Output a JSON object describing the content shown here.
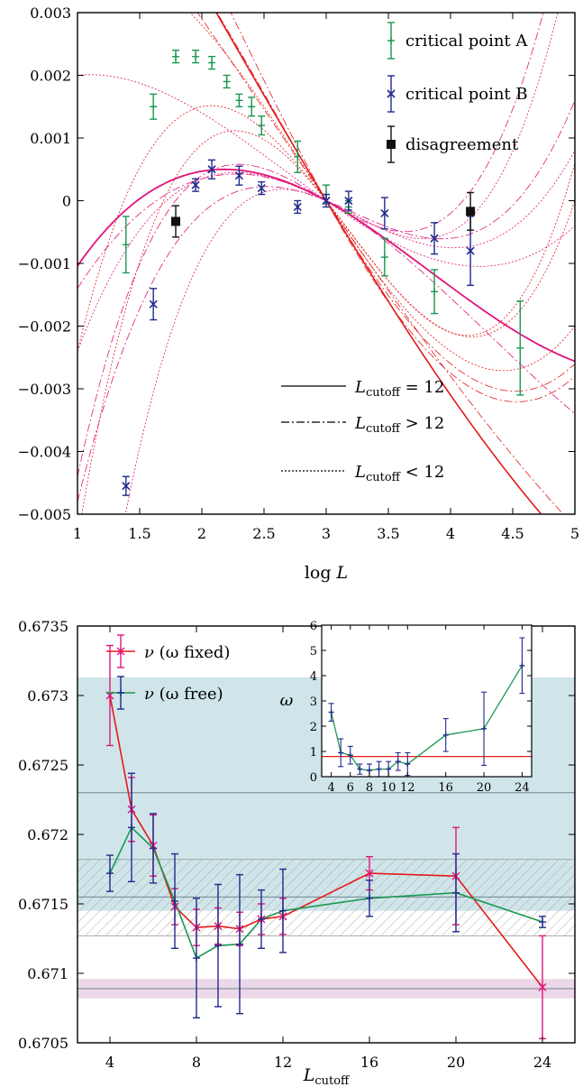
{
  "chart_data": [
    {
      "type": "scatter",
      "title": "",
      "xlabel_main": "log",
      "xlabel_var": "L",
      "ylabel": "",
      "xlim": [
        1,
        5
      ],
      "ylim": [
        -0.005,
        0.003
      ],
      "x_ticks": [
        1,
        1.5,
        2,
        2.5,
        3,
        3.5,
        4,
        4.5,
        5
      ],
      "x_tick_labels": [
        "1",
        "1.5",
        "2",
        "2.5",
        "3",
        "3.5",
        "4",
        "4.5",
        "5"
      ],
      "y_ticks": [
        0.003,
        0.002,
        0.001,
        0,
        -0.001,
        -0.002,
        -0.003,
        -0.004,
        -0.005
      ],
      "y_tick_labels": [
        "0.003",
        "0.002",
        "0.001",
        "0",
        "−0.001",
        "−0.002",
        "−0.003",
        "−0.004",
        "−0.005"
      ],
      "legend_position": "top-right",
      "series": [
        {
          "name": "critical point A",
          "color": "#1a9850",
          "marker": "plus",
          "points": [
            {
              "x": 1.39,
              "y": -0.0007,
              "err": 0.00045
            },
            {
              "x": 1.61,
              "y": 0.0015,
              "err": 0.0002
            },
            {
              "x": 1.79,
              "y": 0.0023,
              "err": 0.0001
            },
            {
              "x": 1.95,
              "y": 0.0023,
              "err": 0.0001
            },
            {
              "x": 2.08,
              "y": 0.0022,
              "err": 0.0001
            },
            {
              "x": 2.2,
              "y": 0.0019,
              "err": 0.0001
            },
            {
              "x": 2.3,
              "y": 0.0016,
              "err": 0.0001
            },
            {
              "x": 2.4,
              "y": 0.0015,
              "err": 0.00015
            },
            {
              "x": 2.48,
              "y": 0.0012,
              "err": 0.00015
            },
            {
              "x": 2.77,
              "y": 0.0007,
              "err": 0.00025
            },
            {
              "x": 3.0,
              "y": 0.0001,
              "err": 0.00015
            },
            {
              "x": 3.18,
              "y": -0.0001,
              "err": 0.0001
            },
            {
              "x": 3.47,
              "y": -0.0009,
              "err": 0.0003
            },
            {
              "x": 3.87,
              "y": -0.00145,
              "err": 0.00035
            },
            {
              "x": 4.56,
              "y": -0.00235,
              "err": 0.00075
            }
          ]
        },
        {
          "name": "critical point B",
          "color": "#1f2a8c",
          "marker": "cross",
          "points": [
            {
              "x": 1.39,
              "y": -0.00455,
              "err": 0.00015
            },
            {
              "x": 1.61,
              "y": -0.00165,
              "err": 0.00025
            },
            {
              "x": 1.95,
              "y": 0.00025,
              "err": 0.0001
            },
            {
              "x": 2.08,
              "y": 0.0005,
              "err": 0.00015
            },
            {
              "x": 2.3,
              "y": 0.0004,
              "err": 0.00015
            },
            {
              "x": 2.48,
              "y": 0.0002,
              "err": 0.0001
            },
            {
              "x": 2.77,
              "y": -0.0001,
              "err": 0.0001
            },
            {
              "x": 3.0,
              "y": 0.0,
              "err": 0.0001
            },
            {
              "x": 3.18,
              "y": 0.0,
              "err": 0.00015
            },
            {
              "x": 3.47,
              "y": -0.0002,
              "err": 0.00025
            },
            {
              "x": 3.87,
              "y": -0.0006,
              "err": 0.00025
            },
            {
              "x": 4.16,
              "y": -0.0008,
              "err": 0.00055
            }
          ]
        },
        {
          "name": "disagreement",
          "color": "#111111",
          "marker": "square",
          "points": [
            {
              "x": 1.79,
              "y": -0.00033,
              "err": 0.00025
            },
            {
              "x": 4.16,
              "y": -0.00017,
              "err": 0.0003
            }
          ]
        }
      ],
      "fits": [
        {
          "name": "L_cutoff = 12",
          "style": "solid",
          "color": "#e31a1c",
          "family": "A",
          "coeffs": [
            0.0035,
            -0.0033,
            0.00045
          ]
        },
        {
          "name": "L_cutoff = 12",
          "style": "solid",
          "color": "#e0157a",
          "family": "B",
          "coeffs": [
            -0.0065,
            0.0055,
            -0.0011
          ]
        }
      ],
      "line_legend": [
        {
          "style": "solid",
          "label_sym": "L",
          "label_sub": "cutoff",
          "label_rest": " = 12"
        },
        {
          "style": "dashdot",
          "label_sym": "L",
          "label_sub": "cutoff",
          "label_rest": " > 12"
        },
        {
          "style": "dotted",
          "label_sym": "L",
          "label_sub": "cutoff",
          "label_rest": " < 12"
        }
      ]
    },
    {
      "type": "line",
      "title": "",
      "xlabel_sym": "L",
      "xlabel_sub": "cutoff",
      "ylabel": "",
      "xlim": [
        2.5,
        25.5
      ],
      "ylim": [
        0.6705,
        0.6735
      ],
      "x_ticks": [
        4,
        8,
        12,
        16,
        20,
        24
      ],
      "x_tick_labels": [
        "4",
        "8",
        "12",
        "16",
        "20",
        "24"
      ],
      "y_ticks": [
        0.6735,
        0.673,
        0.6725,
        0.672,
        0.6715,
        0.671,
        0.6705
      ],
      "y_tick_labels": [
        "0.6735",
        "0.673",
        "0.6725",
        "0.672",
        "0.6715",
        "0.671",
        "0.6705"
      ],
      "legend_position": "top-left",
      "bands": [
        {
          "kind": "shaded",
          "color": "#cfe5ea",
          "y0": 0.67145,
          "y1": 0.67313,
          "line": 0.6723
        },
        {
          "kind": "hatched",
          "color": "#999999",
          "y0": 0.67127,
          "y1": 0.67182,
          "line": 0.67155
        },
        {
          "kind": "shaded",
          "color": "#ecd8e8",
          "y0": 0.67082,
          "y1": 0.67096,
          "line": 0.67089
        }
      ],
      "categories": [
        4,
        5,
        6,
        7,
        8,
        9,
        10,
        11,
        12,
        16,
        20,
        24
      ],
      "series": [
        {
          "name": "ν (ω fixed)",
          "label_greek": "ν",
          "label_rest": "(ω fixed)",
          "line_color": "#e31a1c",
          "err_color": "#e0157a",
          "values": [
            0.673,
            0.67218,
            0.67192,
            0.67148,
            0.67133,
            0.67134,
            0.67132,
            0.67139,
            0.67141,
            0.67172,
            0.6717,
            0.6709
          ],
          "errors": [
            0.00036,
            0.00023,
            0.00022,
            0.00013,
            0.00013,
            0.00013,
            0.00012,
            0.00011,
            0.00013,
            0.00012,
            0.00035,
            0.00037
          ]
        },
        {
          "name": "ν (ω free)",
          "label_greek": "ν",
          "label_rest": "(ω free)",
          "line_color": "#1a9850",
          "err_color": "#1f2a8c",
          "values": [
            0.67172,
            0.67205,
            0.6719,
            0.67152,
            0.67111,
            0.6712,
            0.67121,
            0.67139,
            0.67145,
            0.67154,
            0.67158,
            0.67137
          ],
          "errors": [
            0.00013,
            0.00039,
            0.00025,
            0.00034,
            0.00043,
            0.00044,
            0.0005,
            0.00021,
            0.0003,
            0.00013,
            0.00028,
            4e-05
          ]
        }
      ],
      "inset": {
        "ylabel": "ω",
        "xlim": [
          3,
          25
        ],
        "ylim": [
          0,
          6
        ],
        "x_ticks": [
          4,
          6,
          8,
          10,
          12,
          16,
          20,
          24
        ],
        "x_tick_labels": [
          "4",
          "6",
          "8",
          "10",
          "12",
          "16",
          "20",
          "24"
        ],
        "y_ticks": [
          0,
          1,
          2,
          3,
          4,
          5,
          6
        ],
        "y_tick_labels": [
          "0",
          "1",
          "2",
          "3",
          "4",
          "5",
          "6"
        ],
        "reference_line": 0.8,
        "reference_color": "#e31a1c",
        "line_color": "#1a9850",
        "err_color": "#1f2a8c",
        "categories": [
          4,
          5,
          6,
          7,
          8,
          9,
          10,
          11,
          12,
          16,
          20,
          24
        ],
        "values": [
          2.55,
          0.95,
          0.85,
          0.3,
          0.25,
          0.3,
          0.3,
          0.6,
          0.5,
          1.65,
          1.9,
          4.4
        ],
        "errors": [
          0.35,
          0.55,
          0.35,
          0.2,
          0.25,
          0.3,
          0.3,
          0.35,
          0.45,
          0.65,
          1.45,
          1.1
        ]
      }
    }
  ]
}
